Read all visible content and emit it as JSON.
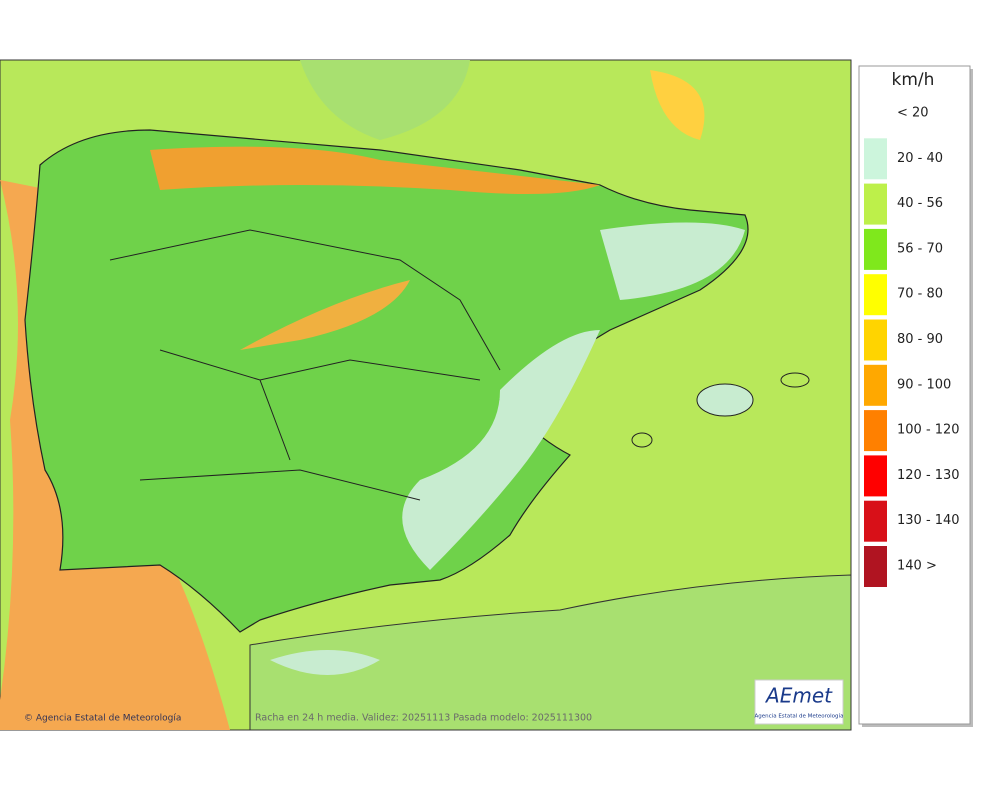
{
  "legend": {
    "title": "km/h",
    "items": [
      {
        "label": "< 20"
      },
      {
        "label": "20 - 40",
        "color": "#ccf5dc"
      },
      {
        "label": "40 - 56",
        "color": "#bdf04a"
      },
      {
        "label": "56 - 70",
        "color": "#7fe81c"
      },
      {
        "label": "70 - 80",
        "color": "#ffff00"
      },
      {
        "label": "80 - 90",
        "color": "#ffd400"
      },
      {
        "label": "90 - 100",
        "color": "#ffa800"
      },
      {
        "label": "100 - 120",
        "color": "#ff8000"
      },
      {
        "label": "120 - 130",
        "color": "#ff0000"
      },
      {
        "label": "130 - 140",
        "color": "#d81018"
      },
      {
        "label": "140 >",
        "color": "#b01421"
      }
    ]
  },
  "footer": {
    "credit": "© Agencia Estatal de Meteorología",
    "caption": "Racha en 24 h media. Validez: 20251113 Pasada modelo: 2025111300"
  },
  "logo": {
    "name": "AEmet",
    "subtitle": "Agencia Estatal de Meteorología"
  }
}
